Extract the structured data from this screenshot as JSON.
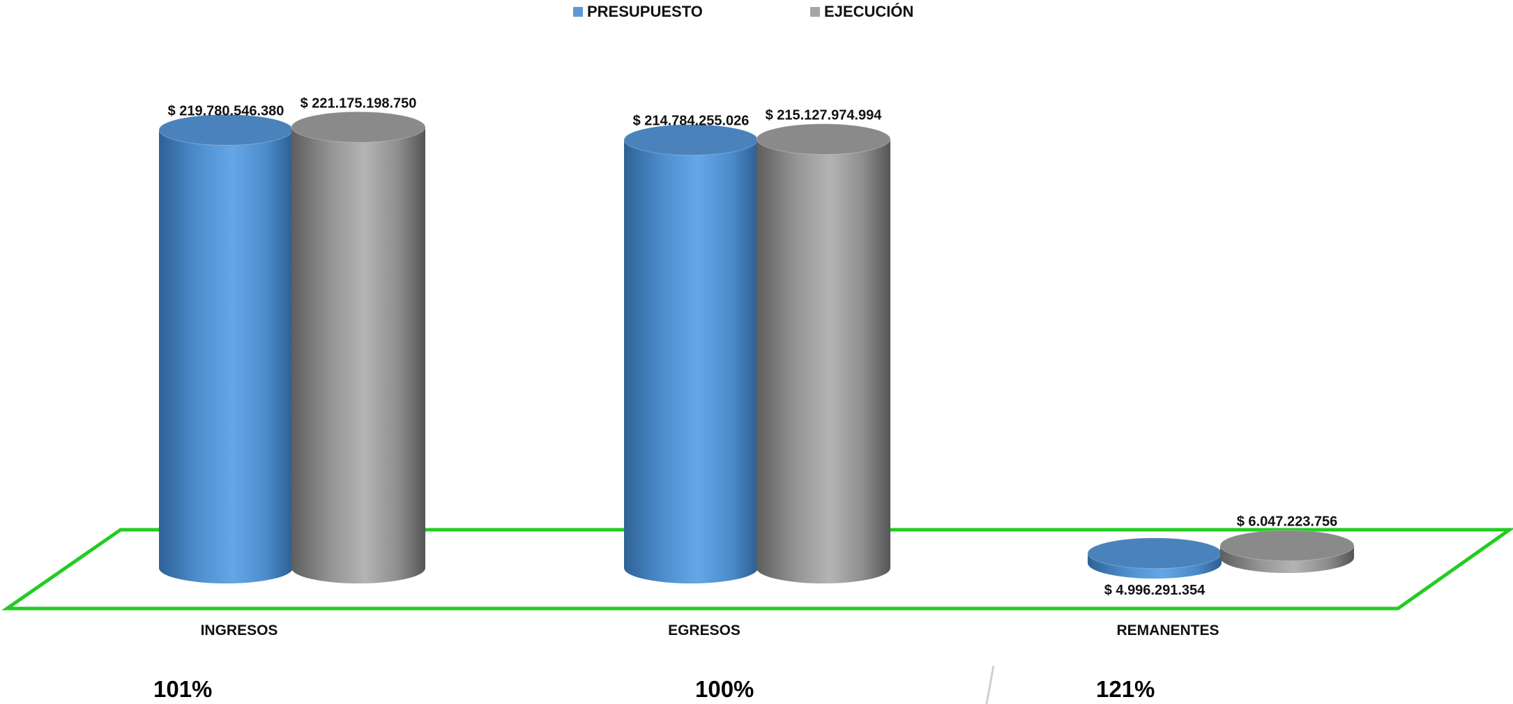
{
  "legend": {
    "presupuesto": "PRESUPUESTO",
    "ejecucion": "EJECUCIÓN"
  },
  "colors": {
    "presupuesto": "#5b9bd5",
    "ejecucion": "#a5a5a5",
    "floor": "#22cc22"
  },
  "percentages": [
    "101%",
    "100%",
    "121%"
  ],
  "chart_data": {
    "type": "bar",
    "style": "3d-cylinder",
    "categories": [
      "INGRESOS",
      "EGRESOS",
      "REMANENTES"
    ],
    "series": [
      {
        "name": "PRESUPUESTO",
        "values": [
          219780546380,
          214784255026,
          4996291354
        ]
      },
      {
        "name": "EJECUCIÓN",
        "values": [
          221175198750,
          215127974994,
          6047223756
        ]
      }
    ],
    "data_labels": [
      [
        "$ 219.780.546.380",
        "$ 214.784.255.026",
        "$ 4.996.291.354"
      ],
      [
        "$ 221.175.198.750",
        "$ 215.127.974.994",
        "$ 6.047.223.756"
      ]
    ],
    "legend_position": "top",
    "grid": false
  }
}
